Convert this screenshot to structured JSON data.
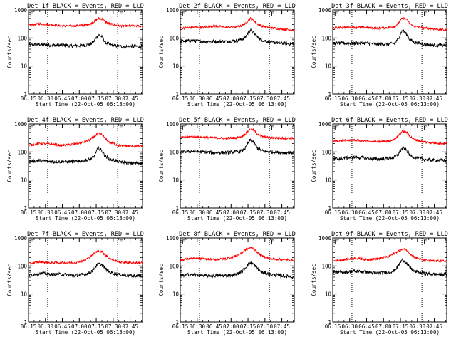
{
  "chart_data": {
    "type": "line",
    "shared": {
      "ylabel": "Counts/sec",
      "y_scale": "log",
      "ylim": [
        1,
        1000
      ],
      "y_ticks": [
        1,
        10,
        100,
        1000
      ],
      "y_tick_labels": [
        "1",
        "10",
        "100",
        "1000"
      ],
      "x_tick_labels": [
        "06:15",
        "06:30",
        "06:45",
        "07:00",
        "07:15",
        "07:30",
        "07:45"
      ],
      "x_ticks_min": [
        0,
        15,
        30,
        45,
        60,
        75,
        90
      ],
      "xlim_min": [
        0,
        101
      ],
      "xlabel": "Start Time (22-Oct-05 06:13:00)",
      "vlines_min": [
        17,
        79
      ],
      "markers": [
        {
          "label": "E",
          "x_min": 0
        },
        {
          "label": "E",
          "x_min": 79
        }
      ],
      "series_colors": {
        "events": "#000000",
        "lld": "#ff0000"
      }
    },
    "panels": [
      {
        "title": "Det 1f BLACK = Events, RED = LLD",
        "series": [
          {
            "key": "events",
            "x": [
              0,
              10,
              20,
              30,
              40,
              50,
              55,
              58,
              62,
              65,
              68,
              72,
              80,
              90,
              101
            ],
            "values": [
              55,
              60,
              55,
              55,
              52,
              55,
              60,
              75,
              130,
              110,
              70,
              58,
              50,
              50,
              50
            ]
          },
          {
            "key": "lld",
            "x": [
              0,
              10,
              20,
              30,
              40,
              50,
              55,
              58,
              62,
              65,
              68,
              72,
              80,
              90,
              101
            ],
            "values": [
              280,
              320,
              300,
              270,
              270,
              290,
              320,
              380,
              500,
              480,
              380,
              320,
              270,
              270,
              270
            ]
          }
        ]
      },
      {
        "title": "Det 2f BLACK = Events, RED = LLD",
        "series": [
          {
            "key": "events",
            "x": [
              0,
              10,
              20,
              30,
              40,
              50,
              55,
              58,
              62,
              65,
              68,
              72,
              80,
              90,
              101
            ],
            "values": [
              75,
              80,
              75,
              75,
              75,
              80,
              90,
              110,
              190,
              150,
              110,
              85,
              70,
              65,
              60
            ]
          },
          {
            "key": "lld",
            "x": [
              0,
              10,
              20,
              30,
              40,
              50,
              55,
              58,
              62,
              65,
              68,
              72,
              80,
              90,
              101
            ],
            "values": [
              220,
              240,
              240,
              270,
              240,
              250,
              280,
              330,
              500,
              420,
              320,
              270,
              230,
              210,
              190
            ]
          }
        ]
      },
      {
        "title": "Det 3f BLACK = Events, RED = LLD",
        "series": [
          {
            "key": "events",
            "x": [
              0,
              10,
              20,
              30,
              40,
              50,
              55,
              58,
              62,
              65,
              68,
              72,
              80,
              90,
              101
            ],
            "values": [
              65,
              65,
              65,
              65,
              60,
              60,
              65,
              90,
              190,
              140,
              90,
              70,
              60,
              55,
              55
            ]
          },
          {
            "key": "lld",
            "x": [
              0,
              10,
              20,
              30,
              40,
              50,
              55,
              58,
              62,
              65,
              68,
              72,
              80,
              90,
              101
            ],
            "values": [
              230,
              240,
              240,
              240,
              220,
              240,
              260,
              330,
              520,
              480,
              330,
              260,
              230,
              210,
              190
            ]
          }
        ]
      },
      {
        "title": "Det 4f BLACK = Events, RED = LLD",
        "series": [
          {
            "key": "events",
            "x": [
              0,
              10,
              20,
              30,
              40,
              50,
              55,
              58,
              62,
              65,
              68,
              72,
              80,
              90,
              101
            ],
            "values": [
              45,
              50,
              45,
              45,
              45,
              50,
              55,
              65,
              140,
              110,
              70,
              55,
              45,
              40,
              40
            ]
          },
          {
            "key": "lld",
            "x": [
              0,
              10,
              20,
              30,
              40,
              50,
              55,
              58,
              62,
              65,
              68,
              72,
              80,
              90,
              101
            ],
            "values": [
              170,
              200,
              190,
              170,
              190,
              230,
              280,
              350,
              450,
              420,
              300,
              220,
              170,
              160,
              160
            ]
          }
        ]
      },
      {
        "title": "Det 5f BLACK = Events, RED = LLD",
        "series": [
          {
            "key": "events",
            "x": [
              0,
              10,
              20,
              30,
              40,
              50,
              55,
              58,
              62,
              65,
              68,
              72,
              80,
              90,
              101
            ],
            "values": [
              100,
              105,
              100,
              95,
              95,
              100,
              110,
              140,
              270,
              220,
              140,
              110,
              100,
              95,
              95
            ]
          },
          {
            "key": "lld",
            "x": [
              0,
              10,
              20,
              30,
              40,
              50,
              55,
              58,
              62,
              65,
              68,
              72,
              80,
              90,
              101
            ],
            "values": [
              320,
              350,
              340,
              320,
              310,
              320,
              360,
              450,
              650,
              600,
              450,
              360,
              320,
              310,
              310
            ]
          }
        ]
      },
      {
        "title": "Det 6f BLACK = Events, RED = LLD",
        "series": [
          {
            "key": "events",
            "x": [
              0,
              10,
              20,
              30,
              40,
              50,
              55,
              58,
              62,
              65,
              68,
              72,
              80,
              90,
              101
            ],
            "values": [
              55,
              60,
              65,
              60,
              55,
              60,
              65,
              80,
              140,
              120,
              80,
              65,
              55,
              50,
              50
            ]
          },
          {
            "key": "lld",
            "x": [
              0,
              10,
              20,
              30,
              40,
              50,
              55,
              58,
              62,
              65,
              68,
              72,
              80,
              90,
              101
            ],
            "values": [
              240,
              260,
              260,
              240,
              230,
              250,
              290,
              380,
              560,
              520,
              380,
              280,
              230,
              210,
              200
            ]
          }
        ]
      },
      {
        "title": "Det 7f BLACK = Events, RED = LLD",
        "series": [
          {
            "key": "events",
            "x": [
              0,
              10,
              20,
              30,
              40,
              50,
              55,
              58,
              62,
              65,
              68,
              72,
              80,
              90,
              101
            ],
            "values": [
              45,
              55,
              50,
              50,
              45,
              50,
              60,
              80,
              120,
              110,
              80,
              60,
              50,
              45,
              45
            ]
          },
          {
            "key": "lld",
            "x": [
              0,
              10,
              20,
              30,
              40,
              50,
              55,
              58,
              62,
              65,
              68,
              72,
              80,
              90,
              101
            ],
            "values": [
              120,
              140,
              130,
              130,
              130,
              160,
              220,
              280,
              350,
              320,
              250,
              180,
              140,
              130,
              130
            ]
          }
        ]
      },
      {
        "title": "Det 8f BLACK = Events, RED = LLD",
        "series": [
          {
            "key": "events",
            "x": [
              0,
              10,
              20,
              30,
              40,
              50,
              55,
              58,
              62,
              65,
              68,
              72,
              80,
              90,
              101
            ],
            "values": [
              45,
              50,
              45,
              45,
              45,
              50,
              65,
              90,
              130,
              115,
              85,
              60,
              50,
              45,
              40
            ]
          },
          {
            "key": "lld",
            "x": [
              0,
              10,
              20,
              30,
              40,
              50,
              55,
              58,
              62,
              65,
              68,
              72,
              80,
              90,
              101
            ],
            "values": [
              160,
              190,
              180,
              170,
              180,
              230,
              300,
              380,
              450,
              420,
              320,
              230,
              180,
              170,
              160
            ]
          }
        ]
      },
      {
        "title": "Det 9f BLACK = Events, RED = LLD",
        "series": [
          {
            "key": "events",
            "x": [
              0,
              10,
              20,
              30,
              40,
              50,
              55,
              58,
              62,
              65,
              68,
              72,
              80,
              90,
              101
            ],
            "values": [
              60,
              60,
              65,
              60,
              55,
              60,
              70,
              100,
              170,
              130,
              90,
              65,
              55,
              50,
              50
            ]
          },
          {
            "key": "lld",
            "x": [
              0,
              10,
              20,
              30,
              40,
              50,
              55,
              58,
              62,
              65,
              68,
              72,
              80,
              90,
              101
            ],
            "values": [
              150,
              170,
              190,
              170,
              180,
              220,
              290,
              340,
              400,
              380,
              290,
              210,
              160,
              150,
              150
            ]
          }
        ]
      }
    ]
  }
}
